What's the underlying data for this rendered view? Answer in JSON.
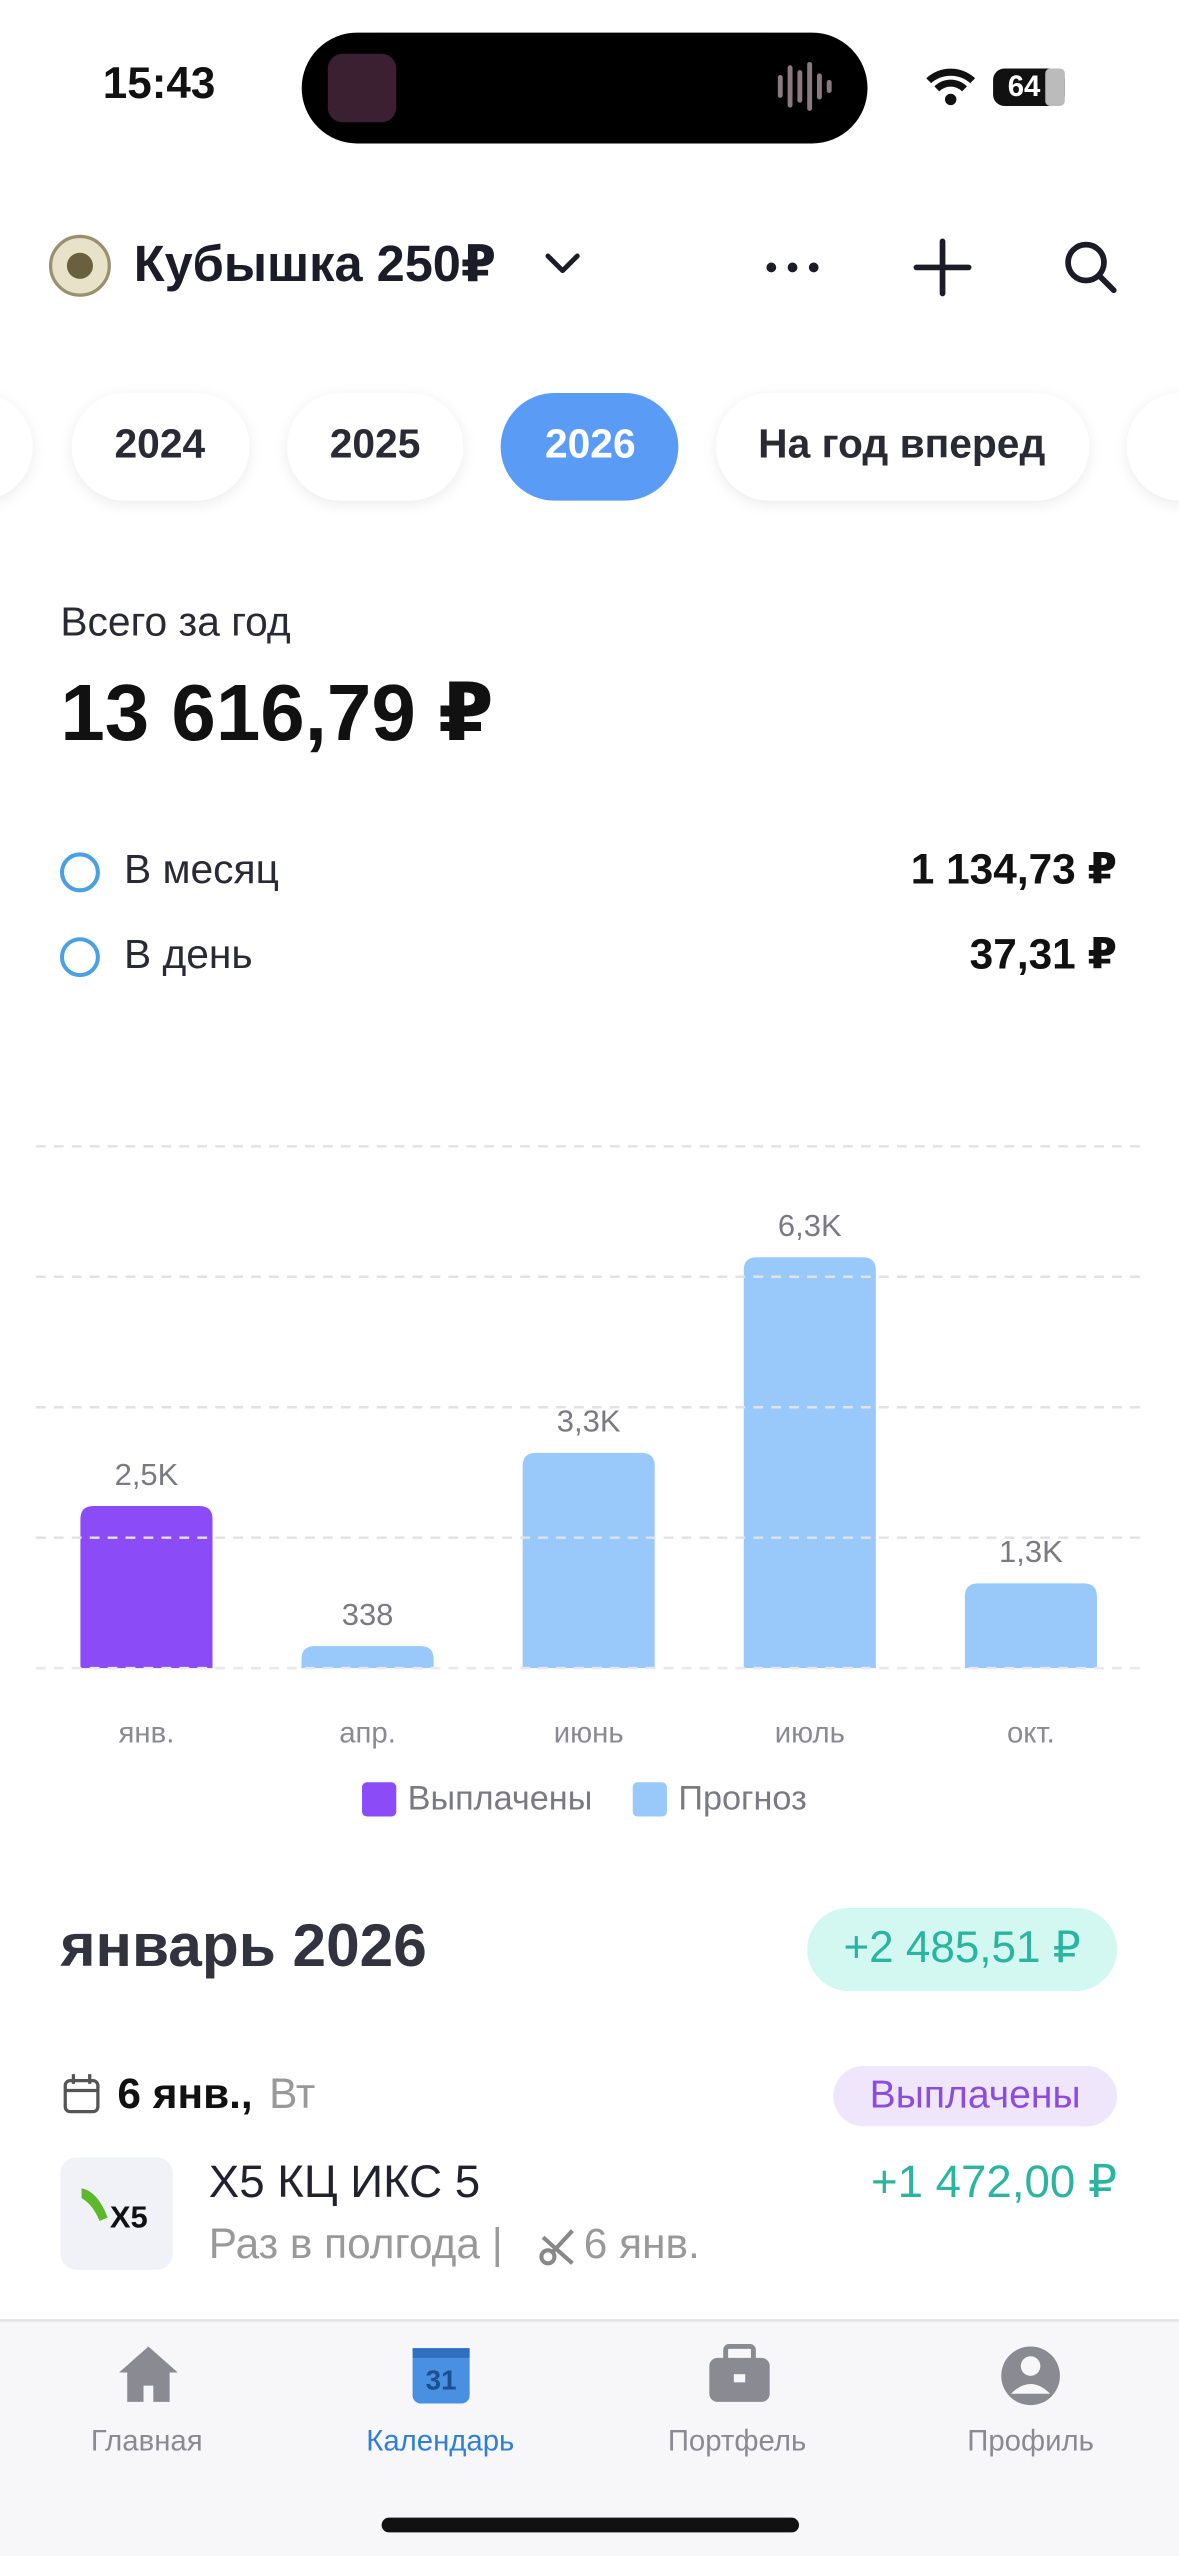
{
  "status_bar": {
    "time": "15:43",
    "battery": "64"
  },
  "header": {
    "title": "Кубышка 250₽"
  },
  "year_tabs": [
    "2024",
    "2025",
    "2026",
    "На год вперед"
  ],
  "summary": {
    "label": "Всего за год",
    "total": "13 616,79 ₽",
    "rows": [
      {
        "label": "В месяц",
        "value": "1 134,73 ₽"
      },
      {
        "label": "В день",
        "value": "37,31 ₽"
      }
    ]
  },
  "chart_data": {
    "type": "bar",
    "categories": [
      "янв.",
      "апр.",
      "июнь",
      "июль",
      "окт."
    ],
    "series": [
      {
        "name": "Выплачены",
        "color": "#8b4cf7",
        "values": [
          2485.51,
          null,
          null,
          null,
          null
        ],
        "value_labels": [
          "2,5K",
          null,
          null,
          null,
          null
        ]
      },
      {
        "name": "Прогноз",
        "color": "#99c8fb",
        "values": [
          null,
          338,
          3300,
          6300,
          1300
        ],
        "value_labels": [
          null,
          "338",
          "3,3K",
          "6,3K",
          "1,3K"
        ]
      }
    ],
    "ylim": [
      0,
      8000
    ],
    "yticks": [
      0,
      2000,
      4000,
      6000,
      8000
    ],
    "grid": true
  },
  "month": {
    "title": "январь 2026",
    "sum": "+2 485,51 ₽",
    "payments": [
      {
        "date": "6 янв.,",
        "weekday": "Вт",
        "status": "Выплачены",
        "logo": "X5",
        "company": "X5 КЦ ИКС 5",
        "frequency": "Раз в полгода |",
        "record_date": "6 янв.",
        "amount": "+1 472,00 ₽"
      }
    ]
  },
  "nav": {
    "calendar_day": "31",
    "items": [
      "Главная",
      "Календарь",
      "Портфель",
      "Профиль"
    ]
  }
}
